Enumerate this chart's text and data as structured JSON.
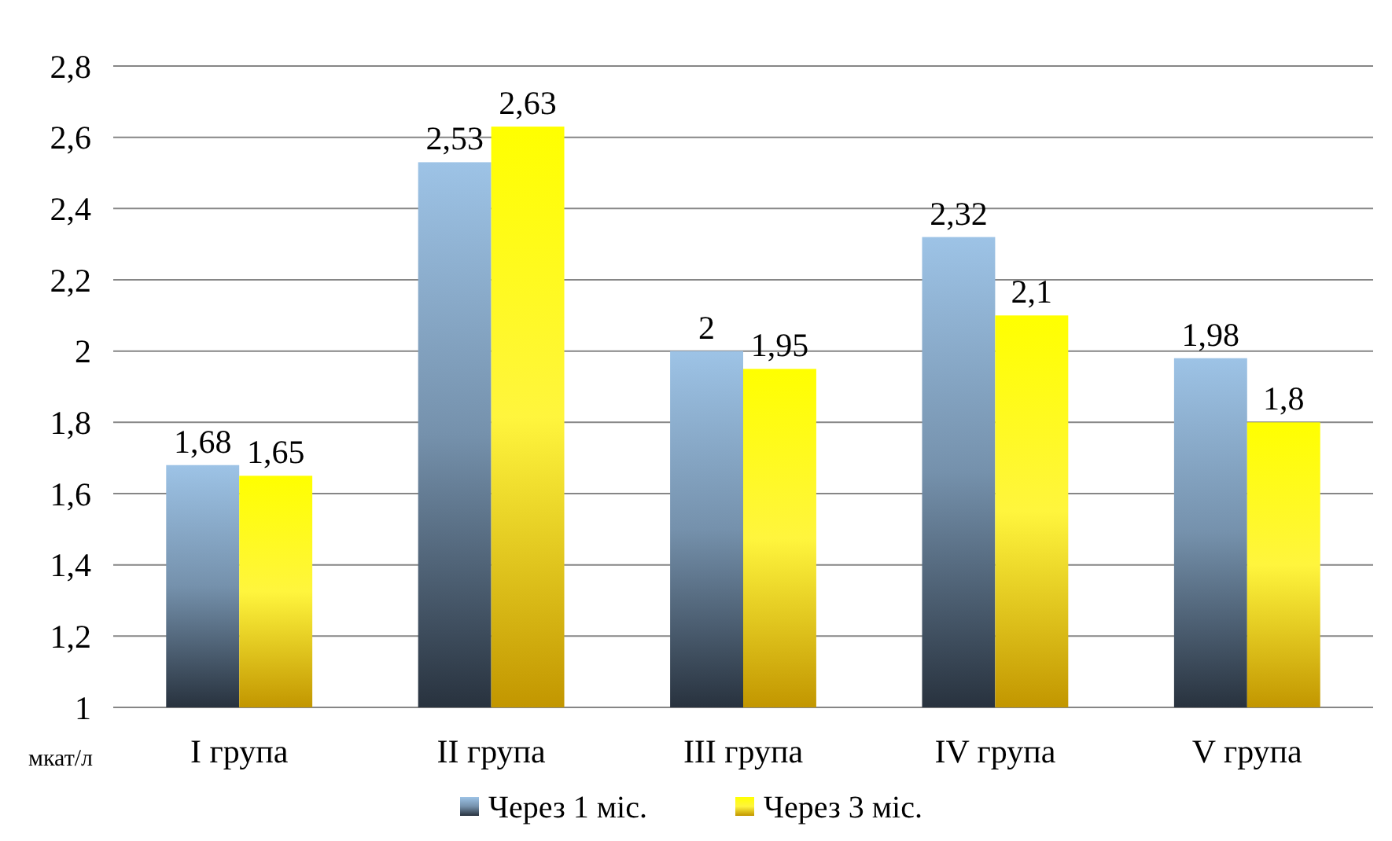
{
  "chart_data": {
    "type": "bar",
    "categories": [
      "I група",
      "II група",
      "III група",
      "IV група",
      "V група"
    ],
    "ylabel": "мкат/л",
    "series": [
      {
        "name": "Через 1 міс.",
        "color": "#9dc3e6",
        "values": [
          1.68,
          2.53,
          2,
          2.32,
          1.98
        ],
        "value_labels": [
          "1,68",
          "2,53",
          "2",
          "2,32",
          "1,98"
        ]
      },
      {
        "name": "Через 3 міс.",
        "color": "#ffff00",
        "values": [
          1.65,
          2.63,
          1.95,
          2.1,
          1.8
        ],
        "value_labels": [
          "1,65",
          "2,63",
          "1,95",
          "2,1",
          "1,8"
        ]
      }
    ],
    "ylim": [
      1,
      2.8
    ],
    "yticks": [
      1,
      {
        "value": 1.2,
        "label": "1,2"
      },
      {
        "value": 1.4,
        "label": "1,4"
      },
      {
        "value": 1.6,
        "label": "1,6"
      },
      {
        "value": 1.8,
        "label": "1,8"
      },
      2,
      {
        "value": 2.2,
        "label": "2,2"
      },
      {
        "value": 2.4,
        "label": "2,4"
      },
      {
        "value": 2.6,
        "label": "2,6"
      },
      {
        "value": 2.8,
        "label": "2,8"
      }
    ],
    "grid": "y",
    "legend": "bottom"
  }
}
